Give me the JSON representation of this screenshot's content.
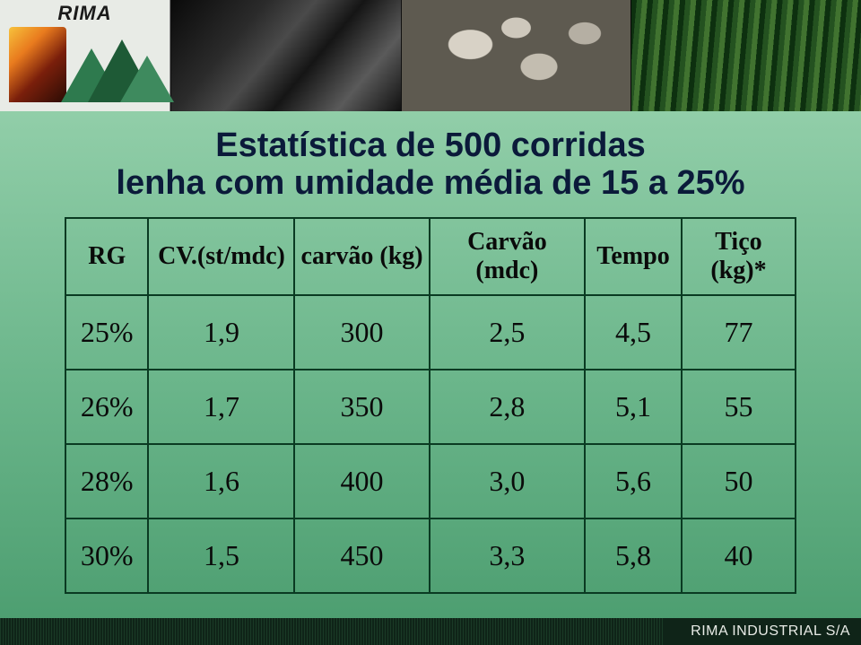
{
  "brand": {
    "name": "RIMA",
    "footer_label": "RIMA INDUSTRIAL S/A"
  },
  "title": {
    "line1": "Estatística de 500 corridas",
    "line2": "lenha com umidade média de 15 a 25%"
  },
  "table": {
    "columns": [
      "RG",
      "CV.(st/mdc)",
      "carvão (kg)",
      "Carvão (mdc)",
      "Tempo",
      "Tiço (kg)*"
    ],
    "rows": [
      [
        "25%",
        "1,9",
        "300",
        "2,5",
        "4,5",
        "77"
      ],
      [
        "26%",
        "1,7",
        "350",
        "2,8",
        "5,1",
        "55"
      ],
      [
        "28%",
        "1,6",
        "400",
        "3,0",
        "5,6",
        "50"
      ],
      [
        "30%",
        "1,5",
        "450",
        "3,3",
        "5,8",
        "40"
      ]
    ],
    "border_color": "#0a3a22",
    "header_fontsize": 28,
    "cell_fontsize": 32,
    "font_family": "Times New Roman"
  },
  "colors": {
    "bg_top": "#a1d8b5",
    "bg_bottom": "#4a9c6e",
    "title_color": "#0b1a3a",
    "header_band": "#1a3a26",
    "footer_bg": "#0f2418",
    "footer_text": "#e8ebe6"
  }
}
